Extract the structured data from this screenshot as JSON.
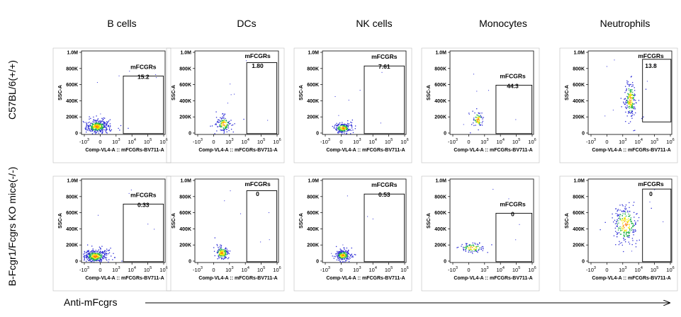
{
  "columns": [
    "B cells",
    "DCs",
    "NK cells",
    "Monocytes",
    "Neutrophils"
  ],
  "rows": [
    "C57BL/6(+/+)",
    "B-Fcgr1/Fcgrs KO mice(-/-)"
  ],
  "bottom_label": "Anti-mFcgrs",
  "axis": {
    "xlabel": "Comp-VL4-A :: mFCGRs-BV711-A",
    "ylabel": "SSC-A",
    "x_ticks": [
      {
        "base": "-10",
        "exp": "3"
      },
      {
        "base": "0",
        "exp": ""
      },
      {
        "base": "10",
        "exp": "3"
      },
      {
        "base": "10",
        "exp": "4"
      },
      {
        "base": "10",
        "exp": "5"
      },
      {
        "base": "10",
        "exp": "6"
      }
    ],
    "y_ticks": [
      "0",
      "200K",
      "400K",
      "600K",
      "800K",
      "1.0M"
    ]
  },
  "colors": {
    "density_low": "#2b2bd6",
    "density_mid": "#1fb24a",
    "density_high": "#f2e600",
    "density_peak": "#ff7a00"
  },
  "chart_data": [
    {
      "type": "scatter",
      "row": "C57BL/6(+/+)",
      "column": "B cells",
      "gate_label": "mFCGRs",
      "gate_value": "15.2"
    },
    {
      "type": "scatter",
      "row": "C57BL/6(+/+)",
      "column": "DCs",
      "gate_label": "mFCGRs",
      "gate_value": "1.80"
    },
    {
      "type": "scatter",
      "row": "C57BL/6(+/+)",
      "column": "NK cells",
      "gate_label": "mFCGRs",
      "gate_value": "7.61"
    },
    {
      "type": "scatter",
      "row": "C57BL/6(+/+)",
      "column": "Monocytes",
      "gate_label": "mFCGRs",
      "gate_value": "44.3"
    },
    {
      "type": "scatter",
      "row": "C57BL/6(+/+)",
      "column": "Neutrophils",
      "gate_label": "mFCGRs",
      "gate_value": "13.8"
    },
    {
      "type": "scatter",
      "row": "B-Fcgr1/Fcgrs KO mice(-/-)",
      "column": "B cells",
      "gate_label": "mFCGRs",
      "gate_value": "0.33"
    },
    {
      "type": "scatter",
      "row": "B-Fcgr1/Fcgrs KO mice(-/-)",
      "column": "DCs",
      "gate_label": "mFCGRs",
      "gate_value": "0"
    },
    {
      "type": "scatter",
      "row": "B-Fcgr1/Fcgrs KO mice(-/-)",
      "column": "NK cells",
      "gate_label": "mFCGRs",
      "gate_value": "0.53"
    },
    {
      "type": "scatter",
      "row": "B-Fcgr1/Fcgrs KO mice(-/-)",
      "column": "Monocytes",
      "gate_label": "mFCGRs",
      "gate_value": "0"
    },
    {
      "type": "scatter",
      "row": "B-Fcgr1/Fcgrs KO mice(-/-)",
      "column": "Neutrophils",
      "gate_label": "mFCGRs",
      "gate_value": "0"
    }
  ]
}
